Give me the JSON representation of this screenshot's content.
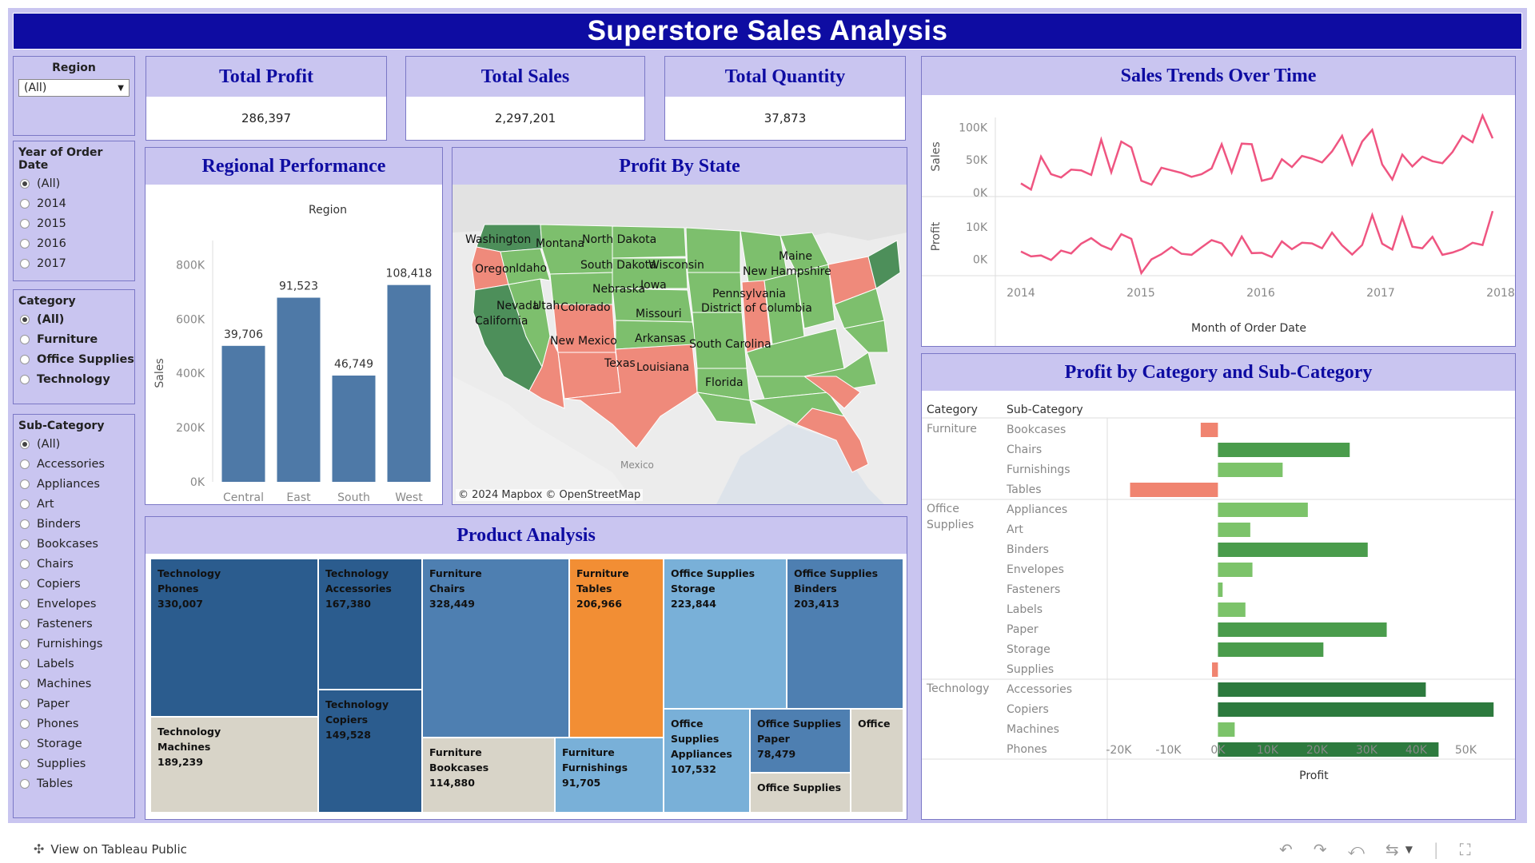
{
  "title": "Superstore Sales Analysis",
  "filters": {
    "region": {
      "label": "Region",
      "value": "(All)"
    },
    "year": {
      "label": "Year of Order Date",
      "options": [
        "(All)",
        "2014",
        "2015",
        "2016",
        "2017"
      ],
      "selected": 0
    },
    "category": {
      "label": "Category",
      "options": [
        "(All)",
        "Furniture",
        "Office Supplies",
        "Technology"
      ],
      "selected": 0
    },
    "subcategory": {
      "label": "Sub-Category",
      "options": [
        "(All)",
        "Accessories",
        "Appliances",
        "Art",
        "Binders",
        "Bookcases",
        "Chairs",
        "Copiers",
        "Envelopes",
        "Fasteners",
        "Furnishings",
        "Labels",
        "Machines",
        "Paper",
        "Phones",
        "Storage",
        "Supplies",
        "Tables"
      ],
      "selected": 0
    }
  },
  "kpis": {
    "profit": {
      "label": "Total Profit",
      "value": "286,397"
    },
    "sales": {
      "label": "Total Sales",
      "value": "2,297,201"
    },
    "quantity": {
      "label": "Total Quantity",
      "value": "37,873"
    }
  },
  "panels": {
    "regional": "Regional Performance",
    "map": "Profit By State",
    "trends": "Sales Trends Over Time",
    "catprofit": "Profit by Category and Sub-Category",
    "product": "Product Analysis"
  },
  "map": {
    "attribution": "© 2024 Mapbox © OpenStreetMap",
    "country_label": "Mexico",
    "state_labels": [
      "Washington",
      "Montana",
      "North Dakota",
      "Maine",
      "Oregon",
      "Idaho",
      "South Dakota",
      "Wisconsin",
      "New Hampshire",
      "Nebraska",
      "Iowa",
      "Pennsylvania",
      "Nevada",
      "Utah",
      "Colorado",
      "Missouri",
      "District of Columbia",
      "California",
      "New Mexico",
      "Arkansas",
      "South Carolina",
      "Texas",
      "Louisiana",
      "Florida"
    ],
    "colors": {
      "profit": "#7dbf6d",
      "strong": "#4d8f5a",
      "loss": "#ef8a7b"
    }
  },
  "treemap": [
    {
      "category": "Technology",
      "subcategory": "Phones",
      "value": "330,007",
      "color": "#2b5c8e"
    },
    {
      "category": "Technology",
      "subcategory": "Accessories",
      "value": "167,380",
      "color": "#2b5c8e"
    },
    {
      "category": "Technology",
      "subcategory": "Copiers",
      "value": "149,528",
      "color": "#2b5c8e"
    },
    {
      "category": "Technology",
      "subcategory": "Machines",
      "value": "189,239",
      "color": "#d8d4c8"
    },
    {
      "category": "Furniture",
      "subcategory": "Chairs",
      "value": "328,449",
      "color": "#4e7fb1"
    },
    {
      "category": "Furniture",
      "subcategory": "Tables",
      "value": "206,966",
      "color": "#f28e34"
    },
    {
      "category": "Furniture",
      "subcategory": "Bookcases",
      "value": "114,880",
      "color": "#d8d4c8"
    },
    {
      "category": "Furniture",
      "subcategory": "Furnishings",
      "value": "91,705",
      "color": "#79b0d8"
    },
    {
      "category": "Office Supplies",
      "subcategory": "Storage",
      "value": "223,844",
      "color": "#79b0d8"
    },
    {
      "category": "Office Supplies",
      "subcategory": "Binders",
      "value": "203,413",
      "color": "#4e7fb1"
    },
    {
      "category": "Office Supplies",
      "subcategory": "Appliances",
      "value": "107,532",
      "color": "#79b0d8"
    },
    {
      "category": "Office Supplies",
      "subcategory": "Paper",
      "value": "78,479",
      "color": "#4e7fb1"
    },
    {
      "category": "Office Supplies",
      "subcategory": "",
      "value": "",
      "color": "#d8d4c8"
    },
    {
      "category": "Office",
      "subcategory": "",
      "value": "",
      "color": "#d8d4c8"
    }
  ],
  "footer": {
    "label": "View on Tableau Public"
  },
  "chart_data": [
    {
      "type": "bar",
      "title": "Region",
      "ylabel": "Sales",
      "categories": [
        "Central",
        "East",
        "South",
        "West"
      ],
      "values": [
        501240,
        678781,
        391722,
        725458
      ],
      "labels": [
        "39,706",
        "91,523",
        "46,749",
        "108,418"
      ],
      "ylim": [
        0,
        860000
      ],
      "yticks": [
        "0K",
        "200K",
        "400K",
        "600K",
        "800K"
      ],
      "color": "#4e79a7"
    },
    {
      "type": "line",
      "xlabel": "Month of Order Date",
      "xticks": [
        "2014",
        "2015",
        "2016",
        "2017",
        "2018"
      ],
      "color": "#ef5581",
      "series": [
        {
          "name": "Sales",
          "yticks": [
            "0K",
            "50K",
            "100K"
          ],
          "ylim": [
            -5000,
            115000
          ],
          "values": [
            14000,
            4500,
            55000,
            28000,
            23000,
            35000,
            34000,
            27000,
            81000,
            31000,
            78000,
            69000,
            18000,
            12000,
            38000,
            34000,
            30000,
            24000,
            28000,
            37000,
            74000,
            31000,
            75000,
            74000,
            18000,
            22000,
            51000,
            39000,
            56000,
            52000,
            46000,
            63000,
            87000,
            43000,
            78000,
            96000,
            43000,
            20000,
            58000,
            40000,
            55000,
            48000,
            45000,
            62000,
            87000,
            77000,
            118000,
            83000
          ]
        },
        {
          "name": "Profit",
          "yticks": [
            "0K",
            "10K"
          ],
          "ylim": [
            -5000,
            19000
          ],
          "values": [
            2400,
            900,
            1200,
            -200,
            2700,
            1800,
            4800,
            6500,
            4300,
            3000,
            7700,
            6300,
            -4200,
            0,
            1600,
            3800,
            1700,
            1400,
            3700,
            5900,
            4900,
            1200,
            7000,
            1900,
            2000,
            700,
            5500,
            3100,
            5100,
            4900,
            3400,
            8200,
            4300,
            1500,
            4400,
            13600,
            4800,
            3000,
            12800,
            3900,
            3400,
            6900,
            1400,
            2100,
            3200,
            5100,
            4400,
            14800
          ]
        }
      ]
    },
    {
      "type": "bar",
      "orientation": "horizontal",
      "xlabel": "Profit",
      "xlim": [
        -22000,
        58000
      ],
      "xticks": [
        "-20K",
        "-10K",
        "0K",
        "10K",
        "20K",
        "30K",
        "40K",
        "50K"
      ],
      "headers": [
        "Category",
        "Sub-Category"
      ],
      "groups": [
        {
          "name": "Furniture",
          "items": [
            {
              "name": "Bookcases",
              "value": -3473
            },
            {
              "name": "Chairs",
              "value": 26590
            },
            {
              "name": "Furnishings",
              "value": 13059
            },
            {
              "name": "Tables",
              "value": -17725
            }
          ]
        },
        {
          "name": "Office Supplies",
          "items": [
            {
              "name": "Appliances",
              "value": 18138
            },
            {
              "name": "Art",
              "value": 6528
            },
            {
              "name": "Binders",
              "value": 30222
            },
            {
              "name": "Envelopes",
              "value": 6964
            },
            {
              "name": "Fasteners",
              "value": 950
            },
            {
              "name": "Labels",
              "value": 5546
            },
            {
              "name": "Paper",
              "value": 34054
            },
            {
              "name": "Storage",
              "value": 21279
            },
            {
              "name": "Supplies",
              "value": -1189
            }
          ]
        },
        {
          "name": "Technology",
          "items": [
            {
              "name": "Accessories",
              "value": 41937
            },
            {
              "name": "Copiers",
              "value": 55618
            },
            {
              "name": "Machines",
              "value": 3385
            },
            {
              "name": "Phones",
              "value": 44516
            }
          ]
        }
      ],
      "colors": {
        "neg": "#f08470",
        "light": "#7cc36a",
        "mid": "#4a9c4c",
        "dark": "#2d7a3e"
      }
    }
  ]
}
